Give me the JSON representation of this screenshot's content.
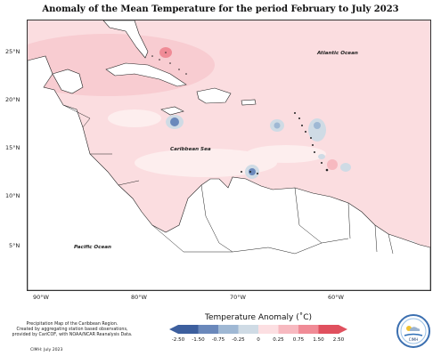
{
  "title": "Anomaly of the Mean Temperature for the period February to July 2023",
  "latitude_labels": [
    "25°N",
    "20°N",
    "15°N",
    "10°N",
    "5°N"
  ],
  "longitude_labels": [
    "90°W",
    "80°W",
    "70°W",
    "60°W"
  ],
  "places": {
    "atlantic": "Atlantic Ocean",
    "caribbean": "Caribbean Sea",
    "pacific": "Pacific Ocean"
  },
  "legend": {
    "title": "Temperature Anomaly (˚C)",
    "ticks": [
      "-2.50",
      "-1.50",
      "-0.75",
      "-0.25",
      "0",
      "0.25",
      "0.75",
      "1.50",
      "2.50"
    ],
    "colors": [
      "#3d5f9e",
      "#6a88bb",
      "#9fb8d4",
      "#cfdbe5",
      "#ffffff",
      "#fcdfe2",
      "#f7b9c0",
      "#f08b96",
      "#e0505e"
    ]
  },
  "footnote": "Precipitation Map of the Caribbean Region.\nCreated by aggregating station based observations,\nprovided by CariCOF, with NOAA/NCAR Reanalysis Data.",
  "credit": "CIMH: July 2023",
  "logo_text": "CIMH"
}
